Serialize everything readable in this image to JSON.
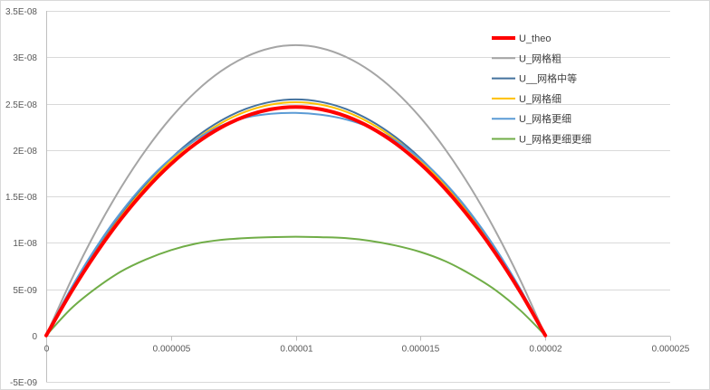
{
  "chart_data": {
    "type": "line",
    "title": "",
    "xlabel": "",
    "ylabel": "",
    "xlim": [
      0,
      2.5e-05
    ],
    "ylim": [
      -5e-09,
      3.5e-08
    ],
    "x_ticks": [
      0,
      5e-06,
      1e-05,
      1.5e-05,
      2e-05,
      2.5e-05
    ],
    "x_tick_labels": [
      "0",
      "0.000005",
      "0.00001",
      "0.000015",
      "0.00002",
      "0.000025"
    ],
    "y_ticks": [
      -5e-09,
      0,
      5e-09,
      1e-08,
      1.5e-08,
      2e-08,
      2.5e-08,
      3e-08,
      3.5e-08
    ],
    "y_tick_labels": [
      "-5E-09",
      "0",
      "5E-09",
      "1E-08",
      "1.5E-08",
      "2E-08",
      "2.5E-08",
      "3E-08",
      "3.5E-08"
    ],
    "grid": "horizontal",
    "legend_position": "right",
    "x": [
      0,
      1e-06,
      2e-06,
      3e-06,
      4e-06,
      5e-06,
      6e-06,
      7e-06,
      8e-06,
      9e-06,
      1e-05,
      1.1e-05,
      1.2e-05,
      1.3e-05,
      1.4e-05,
      1.5e-05,
      1.6e-05,
      1.7e-05,
      1.8e-05,
      1.9e-05,
      2e-05
    ],
    "series": [
      {
        "name": "U_网格粗",
        "color": "#a5a5a5",
        "width": 2,
        "values": [
          0,
          5.95e-09,
          1.127e-08,
          1.596e-08,
          2.003e-08,
          2.348e-08,
          2.63e-08,
          2.849e-08,
          3.005e-08,
          3.099e-08,
          3.13e-08,
          3.099e-08,
          3.005e-08,
          2.849e-08,
          2.63e-08,
          2.348e-08,
          2.003e-08,
          1.596e-08,
          1.127e-08,
          5.95e-09,
          0
        ]
      },
      {
        "name": "U__网格中等",
        "color": "#44729e",
        "width": 2,
        "values": [
          0,
          4.83e-09,
          9.16e-09,
          1.298e-08,
          1.629e-08,
          1.909e-08,
          2.138e-08,
          2.316e-08,
          2.443e-08,
          2.519e-08,
          2.545e-08,
          2.519e-08,
          2.443e-08,
          2.316e-08,
          2.138e-08,
          1.909e-08,
          1.629e-08,
          1.298e-08,
          9.16e-09,
          4.83e-09,
          0
        ]
      },
      {
        "name": "U_网格细",
        "color": "#ffc000",
        "width": 2,
        "values": [
          0,
          4.78e-09,
          9.05e-09,
          1.283e-08,
          1.61e-08,
          1.886e-08,
          2.113e-08,
          2.288e-08,
          2.414e-08,
          2.489e-08,
          2.515e-08,
          2.489e-08,
          2.414e-08,
          2.288e-08,
          2.113e-08,
          1.886e-08,
          1.61e-08,
          1.283e-08,
          9.05e-09,
          4.78e-09,
          0
        ]
      },
      {
        "name": "U_网格更细",
        "color": "#5b9bd5",
        "width": 2,
        "values": [
          0,
          5.1e-09,
          9.5e-09,
          1.33e-08,
          1.65e-08,
          1.91e-08,
          2.11e-08,
          2.26e-08,
          2.35e-08,
          2.39e-08,
          2.4e-08,
          2.38e-08,
          2.33e-08,
          2.24e-08,
          2.1e-08,
          1.9e-08,
          1.64e-08,
          1.32e-08,
          9.4e-09,
          5e-09,
          0
        ]
      },
      {
        "name": "U_网格更细更细",
        "color": "#70ad47",
        "width": 2,
        "values": [
          0,
          2.9e-09,
          5.1e-09,
          6.9e-09,
          8.2e-09,
          9.2e-09,
          9.9e-09,
          1.03e-08,
          1.05e-08,
          1.06e-08,
          1.065e-08,
          1.06e-08,
          1.05e-08,
          1.02e-08,
          9.7e-09,
          9e-09,
          8e-09,
          6.6e-09,
          4.9e-09,
          2.7e-09,
          0
        ]
      },
      {
        "name": "U_theo",
        "color": "#ff0000",
        "width": 4,
        "values": [
          0,
          4.68e-09,
          8.87e-09,
          1.257e-08,
          1.577e-08,
          1.848e-08,
          2.07e-08,
          2.242e-08,
          2.365e-08,
          2.439e-08,
          2.464e-08,
          2.439e-08,
          2.365e-08,
          2.242e-08,
          2.07e-08,
          1.848e-08,
          1.577e-08,
          1.257e-08,
          8.87e-09,
          4.68e-09,
          0
        ]
      }
    ],
    "legend_order": [
      "U_theo",
      "U_网格粗",
      "U__网格中等",
      "U_网格细",
      "U_网格更细",
      "U_网格更细更细"
    ]
  }
}
